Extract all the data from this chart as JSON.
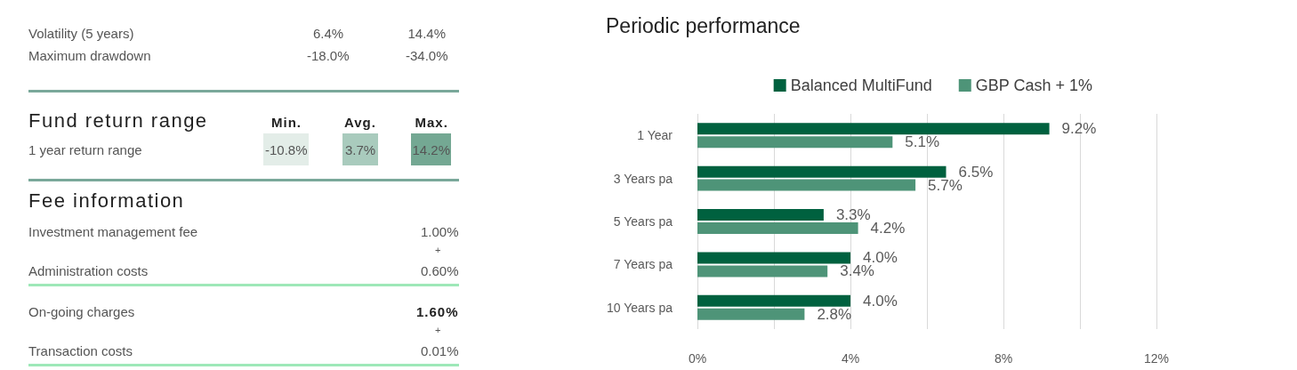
{
  "chart_data": [
    {
      "type": "other",
      "annotations": [
        "Volatility (5 years)",
        "6.4%",
        "14.4%",
        "Maximum drawdown",
        "-18.0%",
        "-34.0%",
        "Fund return range",
        "Min.",
        "Avg.",
        "Max.",
        "1 year return range",
        "-10.8%",
        "3.7%",
        "14.2%",
        "Fee information",
        "Investment management fee",
        "1.00%",
        "+",
        "Administration costs",
        "0.60%",
        "On-going charges",
        "1.60%",
        "+",
        "Transaction costs",
        "0.01%"
      ]
    },
    {
      "type": "bar",
      "title": "Periodic performance",
      "orientation": "horizontal",
      "categories": [
        "1 Year",
        "3 Years pa",
        "5 Years pa",
        "7 Years pa",
        "10 Years pa"
      ],
      "series": [
        {
          "name": "Balanced MultiFund",
          "color": "#00613f",
          "values": [
            9.2,
            6.5,
            3.3,
            4.0,
            4.0
          ],
          "value_labels": [
            "9.2%",
            "6.5%",
            "3.3%",
            "4.0%",
            "4.0%"
          ]
        },
        {
          "name": "GBP Cash + 1%",
          "color": "#4e9478",
          "values": [
            5.1,
            5.7,
            4.2,
            3.4,
            2.8
          ],
          "value_labels": [
            "5.1%",
            "5.7%",
            "4.2%",
            "3.4%",
            "2.8%"
          ]
        }
      ],
      "xlim": [
        0,
        12
      ],
      "xticks": [
        {
          "value": 0,
          "label": "0%"
        },
        {
          "value": 2,
          "label": null
        },
        {
          "value": 4,
          "label": "4%"
        },
        {
          "value": 6,
          "label": null
        },
        {
          "value": 8,
          "label": "8%"
        },
        {
          "value": 10,
          "label": null
        },
        {
          "value": 12,
          "label": "12%"
        }
      ],
      "grid": "x",
      "legend": "top"
    }
  ]
}
